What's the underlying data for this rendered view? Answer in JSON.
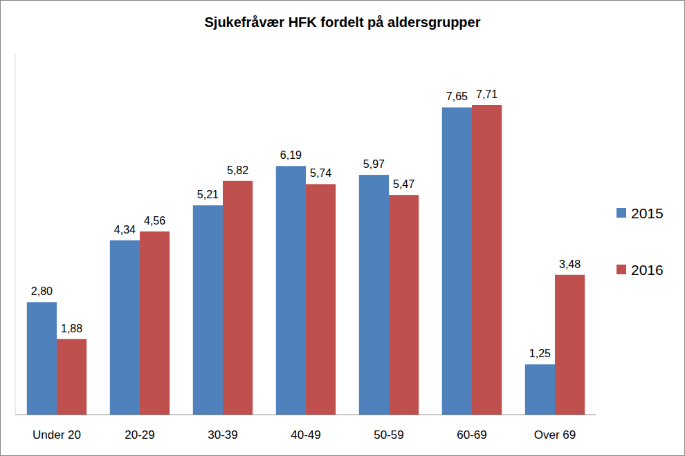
{
  "chart_data": {
    "type": "bar",
    "title": "Sjukefråvær HFK fordelt på aldersgrupper",
    "categories": [
      "Under 20",
      "20-29",
      "30-39",
      "40-49",
      "50-59",
      "60-69",
      "Over 69"
    ],
    "series": [
      {
        "name": "2015",
        "color": "#4f81bd",
        "values": [
          2.8,
          4.34,
          5.21,
          6.19,
          5.97,
          7.65,
          1.25
        ],
        "value_labels": [
          "2,80",
          "4,34",
          "5,21",
          "6,19",
          "5,97",
          "7,65",
          "1,25"
        ]
      },
      {
        "name": "2016",
        "color": "#c0504d",
        "values": [
          1.88,
          4.56,
          5.82,
          5.74,
          5.47,
          7.71,
          3.48
        ],
        "value_labels": [
          "1,88",
          "4,56",
          "5,82",
          "5,74",
          "5,47",
          "7,71",
          "3,48"
        ]
      }
    ],
    "ylim": [
      0,
      9
    ],
    "grid": false,
    "legend": "right",
    "data_labels": true,
    "tick_labels": "x"
  }
}
